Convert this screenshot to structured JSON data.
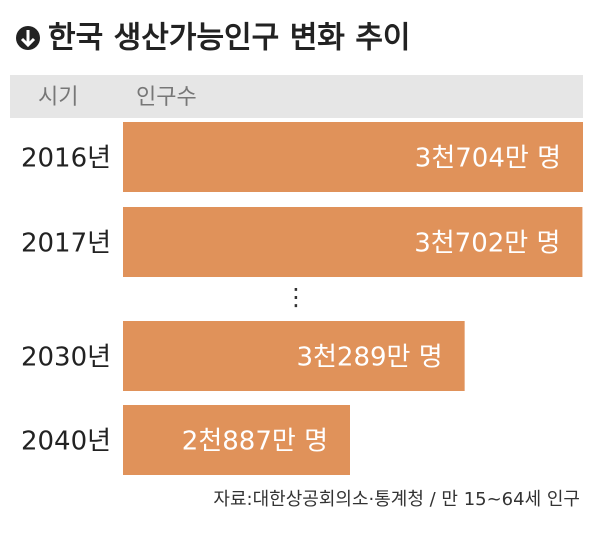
{
  "chart_data": {
    "type": "bar",
    "orientation": "horizontal",
    "title": "한국 생산가능인구 변화 추이",
    "column_headers": [
      "시기",
      "인구수"
    ],
    "categories": [
      "2016년",
      "2017년",
      "2030년",
      "2040년"
    ],
    "values": [
      3704,
      3702,
      3289,
      2887
    ],
    "value_labels": [
      "3천704만 명",
      "3천702만 명",
      "3천289만 명",
      "2천887만 명"
    ],
    "color": "#e0925a",
    "source": "자료:대한상공회의소·통계청 / 만 15~64세 인구"
  }
}
